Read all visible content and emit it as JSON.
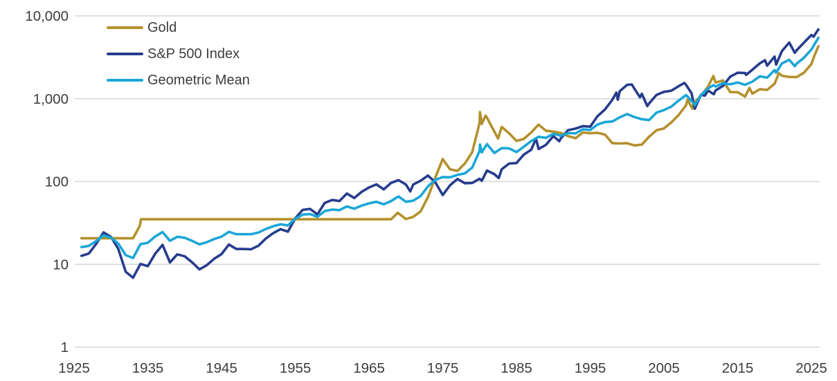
{
  "colors": {
    "background": "#ffffff",
    "grid": "#d5d5d5",
    "text": "#3d3d3d",
    "gold": "#B3902C",
    "sp500": "#263C8D",
    "geometric_mean": "#1BA6D7"
  },
  "chart_data": {
    "type": "line",
    "title": "",
    "xlabel": "",
    "ylabel": "",
    "grid": true,
    "legend_position": "top-left",
    "x_axis": {
      "range": [
        1925,
        2026
      ],
      "tick_values": [
        1925,
        1935,
        1945,
        1955,
        1965,
        1975,
        1985,
        1995,
        2005,
        2015,
        2025
      ],
      "tick_labels": [
        "1925",
        "1935",
        "1945",
        "1955",
        "1965",
        "1975",
        "1985",
        "1995",
        "2005",
        "2015",
        "2025"
      ]
    },
    "y_axis": {
      "scale": "log",
      "range": [
        1,
        10000
      ],
      "tick_values": [
        10000,
        1000,
        100,
        10,
        1
      ],
      "tick_labels": [
        "10,000",
        "1,000",
        "100",
        "10",
        "1"
      ]
    },
    "series": [
      {
        "name": "Gold",
        "color": "#B3902C",
        "points": [
          [
            1926,
            20.63
          ],
          [
            1933,
            20.63
          ],
          [
            1933.9,
            29
          ],
          [
            1934.08,
            35
          ],
          [
            1968,
            35
          ],
          [
            1968.9,
            41.9
          ],
          [
            1970,
            35.2
          ],
          [
            1971,
            37.4
          ],
          [
            1972,
            43.5
          ],
          [
            1973,
            64.9
          ],
          [
            1974,
            112.3
          ],
          [
            1975,
            186.8
          ],
          [
            1976,
            140.3
          ],
          [
            1977,
            134.5
          ],
          [
            1978,
            164.9
          ],
          [
            1979,
            226
          ],
          [
            1980,
            512
          ],
          [
            1980.05,
            690
          ],
          [
            1980.3,
            495
          ],
          [
            1980.8,
            625
          ],
          [
            1981,
            590
          ],
          [
            1982,
            400
          ],
          [
            1982.5,
            330
          ],
          [
            1983,
            457
          ],
          [
            1984,
            382
          ],
          [
            1985,
            309
          ],
          [
            1986,
            327
          ],
          [
            1987,
            391
          ],
          [
            1988,
            487
          ],
          [
            1989,
            410
          ],
          [
            1990,
            401
          ],
          [
            1991,
            386
          ],
          [
            1992,
            353
          ],
          [
            1993,
            333
          ],
          [
            1994,
            391
          ],
          [
            1995,
            383
          ],
          [
            1996,
            387
          ],
          [
            1997,
            369
          ],
          [
            1998,
            290
          ],
          [
            1999,
            288
          ],
          [
            2000,
            290
          ],
          [
            2001,
            273
          ],
          [
            2002,
            279
          ],
          [
            2003,
            348
          ],
          [
            2004,
            416
          ],
          [
            2005,
            438
          ],
          [
            2006,
            517
          ],
          [
            2007,
            636
          ],
          [
            2008,
            834
          ],
          [
            2008.2,
            968
          ],
          [
            2008.85,
            760
          ],
          [
            2009,
            870
          ],
          [
            2010,
            1088
          ],
          [
            2011,
            1406
          ],
          [
            2011.7,
            1880
          ],
          [
            2012,
            1567
          ],
          [
            2013,
            1664
          ],
          [
            2014,
            1202
          ],
          [
            2015,
            1199
          ],
          [
            2016,
            1060
          ],
          [
            2016.6,
            1350
          ],
          [
            2017,
            1151
          ],
          [
            2018,
            1303
          ],
          [
            2019,
            1279
          ],
          [
            2020,
            1517
          ],
          [
            2020.6,
            2030
          ],
          [
            2021,
            1895
          ],
          [
            2022,
            1829
          ],
          [
            2023,
            1824
          ],
          [
            2024,
            2063
          ],
          [
            2025,
            2625
          ],
          [
            2025.4,
            3300
          ],
          [
            2025.95,
            4300
          ]
        ]
      },
      {
        "name": "S&P 500 Index",
        "color": "#263C8D",
        "points": [
          [
            1926,
            12.65
          ],
          [
            1927,
            13.49
          ],
          [
            1928,
            17.66
          ],
          [
            1929,
            24.35
          ],
          [
            1930,
            21.45
          ],
          [
            1931,
            15.34
          ],
          [
            1932,
            8.12
          ],
          [
            1933,
            6.89
          ],
          [
            1934,
            10.1
          ],
          [
            1935,
            9.5
          ],
          [
            1936,
            13.43
          ],
          [
            1937,
            17.18
          ],
          [
            1938,
            10.55
          ],
          [
            1939,
            13.21
          ],
          [
            1940,
            12.49
          ],
          [
            1941,
            10.58
          ],
          [
            1942,
            8.69
          ],
          [
            1943,
            9.77
          ],
          [
            1944,
            11.67
          ],
          [
            1945,
            13.28
          ],
          [
            1946,
            17.36
          ],
          [
            1947,
            15.3
          ],
          [
            1948,
            15.3
          ],
          [
            1949,
            15.2
          ],
          [
            1950,
            16.76
          ],
          [
            1951,
            20.41
          ],
          [
            1952,
            23.77
          ],
          [
            1953,
            26.57
          ],
          [
            1954,
            24.81
          ],
          [
            1955,
            35.98
          ],
          [
            1956,
            45.48
          ],
          [
            1957,
            46.67
          ],
          [
            1958,
            39.99
          ],
          [
            1959,
            55.21
          ],
          [
            1960,
            59.89
          ],
          [
            1961,
            58.11
          ],
          [
            1962,
            71.55
          ],
          [
            1963,
            63.1
          ],
          [
            1964,
            75.02
          ],
          [
            1965,
            84.75
          ],
          [
            1966,
            92.43
          ],
          [
            1967,
            80.33
          ],
          [
            1968,
            96.47
          ],
          [
            1969,
            103.86
          ],
          [
            1970,
            92.06
          ],
          [
            1970.6,
            76
          ],
          [
            1971,
            92.15
          ],
          [
            1972,
            102.09
          ],
          [
            1973,
            118.05
          ],
          [
            1974,
            97.55
          ],
          [
            1975,
            68.56
          ],
          [
            1976,
            90.19
          ],
          [
            1977,
            107.46
          ],
          [
            1978,
            95.1
          ],
          [
            1979,
            96.11
          ],
          [
            1980,
            107.94
          ],
          [
            1980.3,
            102
          ],
          [
            1981,
            135.76
          ],
          [
            1982,
            122.55
          ],
          [
            1982.6,
            110
          ],
          [
            1983,
            140.64
          ],
          [
            1984,
            164.93
          ],
          [
            1985,
            167.24
          ],
          [
            1986,
            211.28
          ],
          [
            1987,
            242.17
          ],
          [
            1987.65,
            329
          ],
          [
            1988,
            247.08
          ],
          [
            1989,
            277.72
          ],
          [
            1990,
            353.4
          ],
          [
            1990.8,
            306
          ],
          [
            1991,
            330.22
          ],
          [
            1992,
            417.09
          ],
          [
            1993,
            435.71
          ],
          [
            1994,
            466.45
          ],
          [
            1995,
            459.27
          ],
          [
            1996,
            615.93
          ],
          [
            1997,
            740.74
          ],
          [
            1998,
            970.43
          ],
          [
            1998.55,
            1186
          ],
          [
            1998.75,
            973
          ],
          [
            1999,
            1229.23
          ],
          [
            2000,
            1469.25
          ],
          [
            2000.65,
            1485
          ],
          [
            2001,
            1320.28
          ],
          [
            2001.75,
            1040
          ],
          [
            2002,
            1148.08
          ],
          [
            2002.75,
            815
          ],
          [
            2003,
            879.82
          ],
          [
            2004,
            1111.92
          ],
          [
            2005,
            1211.92
          ],
          [
            2006,
            1248.29
          ],
          [
            2007,
            1418.3
          ],
          [
            2007.78,
            1549
          ],
          [
            2008,
            1468.36
          ],
          [
            2008.75,
            1166
          ],
          [
            2009,
            903.25
          ],
          [
            2009.2,
            757
          ],
          [
            2010,
            1115.1
          ],
          [
            2010.55,
            1089
          ],
          [
            2011,
            1257.64
          ],
          [
            2011.75,
            1131
          ],
          [
            2012,
            1257.6
          ],
          [
            2013,
            1426.19
          ],
          [
            2014,
            1848.36
          ],
          [
            2015,
            2058.9
          ],
          [
            2016,
            2043.94
          ],
          [
            2016.15,
            1940
          ],
          [
            2017,
            2238.83
          ],
          [
            2018,
            2673.61
          ],
          [
            2018.72,
            2914
          ],
          [
            2019,
            2506.85
          ],
          [
            2020,
            3230.78
          ],
          [
            2020.22,
            2585
          ],
          [
            2021,
            3756.07
          ],
          [
            2022,
            4766.18
          ],
          [
            2022.75,
            3585
          ],
          [
            2023,
            3839.5
          ],
          [
            2024,
            4769.83
          ],
          [
            2025,
            5881.63
          ],
          [
            2025.3,
            5620
          ],
          [
            2025.95,
            6870
          ]
        ]
      },
      {
        "name": "Geometric Mean",
        "color": "#1BA6D7",
        "points": [
          [
            1926,
            16.15
          ],
          [
            1927,
            16.7
          ],
          [
            1928,
            19.1
          ],
          [
            1929,
            22.4
          ],
          [
            1930,
            21.0
          ],
          [
            1931,
            17.8
          ],
          [
            1932,
            12.9
          ],
          [
            1933,
            11.9
          ],
          [
            1934,
            17.5
          ],
          [
            1935,
            18.2
          ],
          [
            1936,
            21.7
          ],
          [
            1937,
            24.5
          ],
          [
            1938,
            19.2
          ],
          [
            1939,
            21.5
          ],
          [
            1940,
            20.9
          ],
          [
            1941,
            19.2
          ],
          [
            1942,
            17.4
          ],
          [
            1943,
            18.5
          ],
          [
            1944,
            20.2
          ],
          [
            1945,
            21.6
          ],
          [
            1946,
            24.7
          ],
          [
            1947,
            23.1
          ],
          [
            1948,
            23.1
          ],
          [
            1949,
            23.1
          ],
          [
            1950,
            24.2
          ],
          [
            1951,
            26.7
          ],
          [
            1952,
            28.8
          ],
          [
            1953,
            30.5
          ],
          [
            1954,
            29.5
          ],
          [
            1955,
            35.5
          ],
          [
            1956,
            39.9
          ],
          [
            1957,
            40.4
          ],
          [
            1958,
            37.4
          ],
          [
            1959,
            44.0
          ],
          [
            1960,
            45.8
          ],
          [
            1961,
            45.1
          ],
          [
            1962,
            50.0
          ],
          [
            1963,
            47.0
          ],
          [
            1964,
            51.2
          ],
          [
            1965,
            54.5
          ],
          [
            1966,
            56.9
          ],
          [
            1967,
            53.0
          ],
          [
            1968,
            58.1
          ],
          [
            1969,
            66.0
          ],
          [
            1970,
            56.9
          ],
          [
            1971,
            58.7
          ],
          [
            1972,
            66.6
          ],
          [
            1973,
            87.5
          ],
          [
            1974,
            104.7
          ],
          [
            1975,
            113.2
          ],
          [
            1976,
            112.5
          ],
          [
            1977,
            120.2
          ],
          [
            1978,
            125.2
          ],
          [
            1979,
            147.4
          ],
          [
            1980,
            235
          ],
          [
            1980.05,
            280
          ],
          [
            1980.3,
            225
          ],
          [
            1981,
            283
          ],
          [
            1982,
            221
          ],
          [
            1983,
            253
          ],
          [
            1984,
            251
          ],
          [
            1985,
            227
          ],
          [
            1986,
            263
          ],
          [
            1987,
            308
          ],
          [
            1988,
            347
          ],
          [
            1989,
            337
          ],
          [
            1990,
            377
          ],
          [
            1991,
            357
          ],
          [
            1992,
            384
          ],
          [
            1993,
            381
          ],
          [
            1994,
            427
          ],
          [
            1995,
            419
          ],
          [
            1996,
            488
          ],
          [
            1997,
            523
          ],
          [
            1998,
            531
          ],
          [
            1999,
            595
          ],
          [
            2000,
            653
          ],
          [
            2001,
            600
          ],
          [
            2002,
            566
          ],
          [
            2003,
            553
          ],
          [
            2004,
            680
          ],
          [
            2005,
            729
          ],
          [
            2006,
            803
          ],
          [
            2007,
            950
          ],
          [
            2008,
            1107
          ],
          [
            2009,
            886
          ],
          [
            2009.2,
            835
          ],
          [
            2010,
            1102
          ],
          [
            2011,
            1330
          ],
          [
            2011.7,
            1458
          ],
          [
            2012,
            1404
          ],
          [
            2013,
            1541
          ],
          [
            2014,
            1491
          ],
          [
            2015,
            1571
          ],
          [
            2016,
            1472
          ],
          [
            2017,
            1605
          ],
          [
            2018,
            1866
          ],
          [
            2019,
            1791
          ],
          [
            2020,
            2214
          ],
          [
            2020.22,
            2065
          ],
          [
            2021,
            2668
          ],
          [
            2022,
            2952
          ],
          [
            2022.75,
            2469
          ],
          [
            2023,
            2646
          ],
          [
            2024,
            3137
          ],
          [
            2025,
            3929
          ],
          [
            2025.95,
            5435
          ]
        ]
      }
    ]
  }
}
